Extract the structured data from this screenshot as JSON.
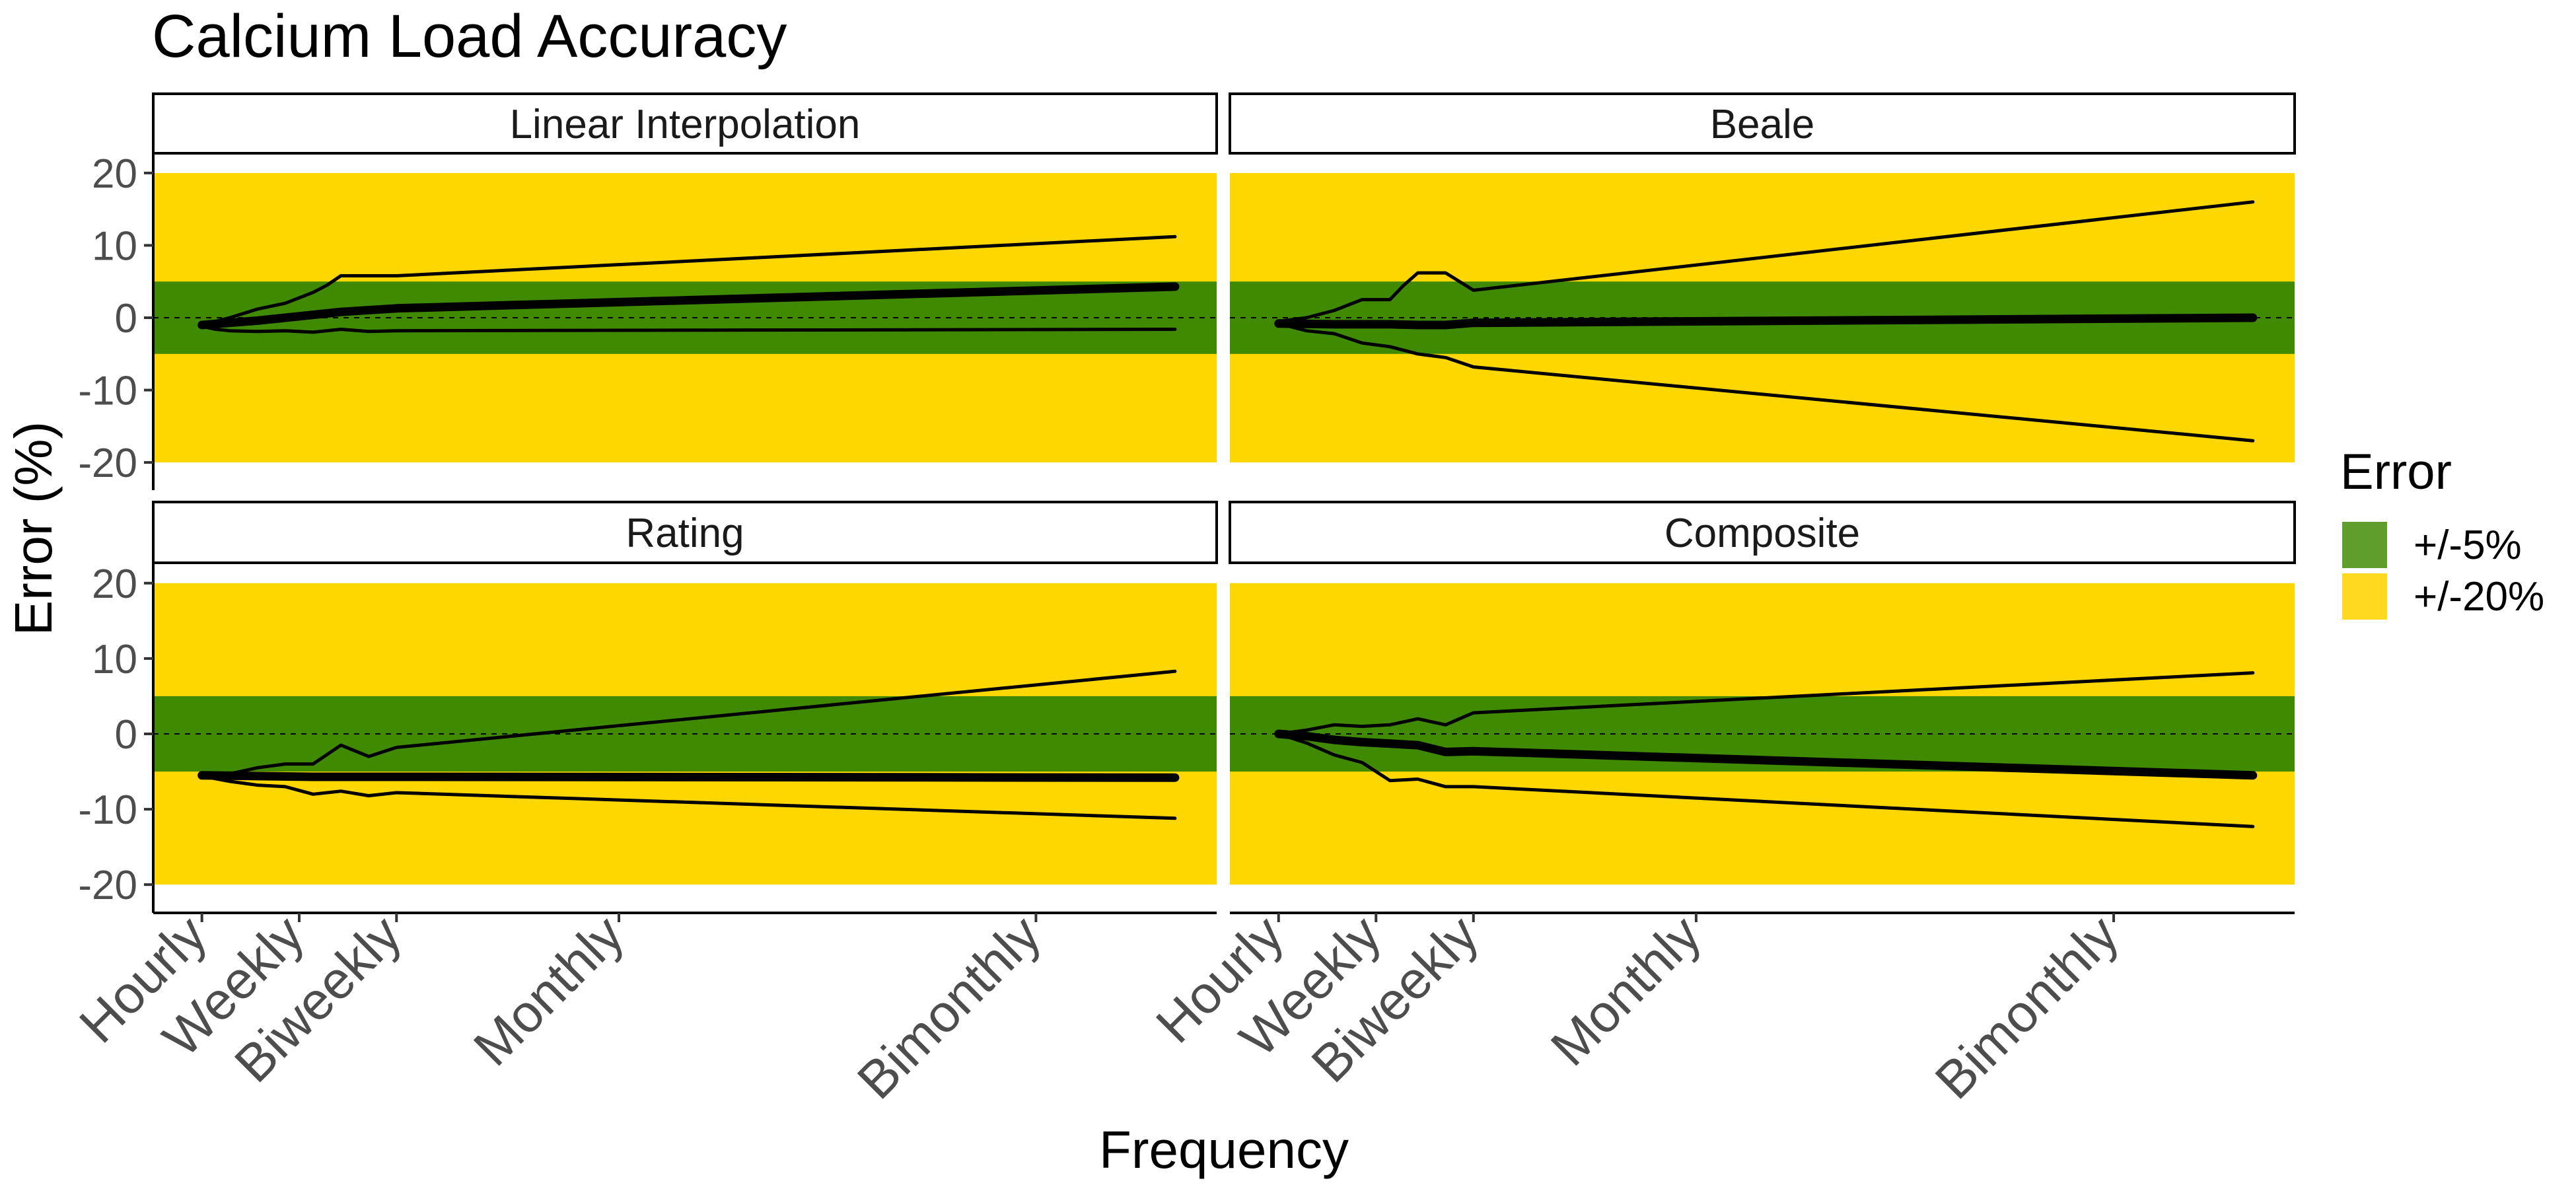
{
  "chart_data": {
    "type": "line",
    "title": "Calcium Load Accuracy",
    "xlabel": "Frequency",
    "ylabel": "Error (%)",
    "x_ticks": [
      {
        "label": "Hourly",
        "x": 0
      },
      {
        "label": "Weekly",
        "x": 7
      },
      {
        "label": "Biweekly",
        "x": 14
      },
      {
        "label": "Monthly",
        "x": 30
      },
      {
        "label": "Bimonthly",
        "x": 60
      }
    ],
    "xlim": [
      -3.5,
      73
    ],
    "ylim": [
      -22,
      22
    ],
    "y_ticks": [
      -20,
      -10,
      0,
      10,
      20
    ],
    "bands": [
      {
        "label": "+/-20%",
        "min": -20,
        "max": 20,
        "color": "#FFD700",
        "legend_color": "#FFD91F"
      },
      {
        "label": "+/-5%",
        "min": -5,
        "max": 5,
        "color": "#3F8A00",
        "legend_color": "#5F9E2C"
      }
    ],
    "legend": {
      "title": "Error",
      "position": "right",
      "entries": [
        {
          "label": "+/-5%",
          "color": "#5F9E2C"
        },
        {
          "label": "+/-20%",
          "color": "#FFD91F"
        }
      ]
    },
    "reference_line": 0,
    "panels": [
      {
        "name": "Linear Interpolation",
        "series": [
          {
            "role": "upper",
            "points": [
              [
                0,
                -1
              ],
              [
                1,
                -0.5
              ],
              [
                2,
                0
              ],
              [
                4,
                1.2
              ],
              [
                6,
                2
              ],
              [
                8,
                3.5
              ],
              [
                9,
                4.5
              ],
              [
                10,
                5.8
              ],
              [
                14,
                5.8
              ],
              [
                70,
                11.2
              ]
            ]
          },
          {
            "role": "median",
            "points": [
              [
                0,
                -1
              ],
              [
                2,
                -0.7
              ],
              [
                4,
                -0.4
              ],
              [
                6,
                0
              ],
              [
                8,
                0.4
              ],
              [
                10,
                0.8
              ],
              [
                14,
                1.3
              ],
              [
                70,
                4.3
              ]
            ]
          },
          {
            "role": "lower",
            "points": [
              [
                0,
                -1.2
              ],
              [
                1,
                -1.6
              ],
              [
                2,
                -1.8
              ],
              [
                4,
                -1.9
              ],
              [
                6,
                -1.8
              ],
              [
                8,
                -2
              ],
              [
                10,
                -1.6
              ],
              [
                12,
                -1.9
              ],
              [
                14,
                -1.8
              ],
              [
                70,
                -1.6
              ]
            ]
          }
        ]
      },
      {
        "name": "Beale",
        "series": [
          {
            "role": "upper",
            "points": [
              [
                0,
                -0.5
              ],
              [
                2,
                0
              ],
              [
                4,
                1
              ],
              [
                6,
                2.5
              ],
              [
                8,
                2.5
              ],
              [
                9,
                4.5
              ],
              [
                10,
                6.2
              ],
              [
                12,
                6.2
              ],
              [
                14,
                3.8
              ],
              [
                70,
                16
              ]
            ]
          },
          {
            "role": "median",
            "points": [
              [
                0,
                -0.8
              ],
              [
                4,
                -0.9
              ],
              [
                8,
                -0.9
              ],
              [
                10,
                -1
              ],
              [
                12,
                -1
              ],
              [
                14,
                -0.7
              ],
              [
                70,
                0
              ]
            ]
          },
          {
            "role": "lower",
            "points": [
              [
                0,
                -0.8
              ],
              [
                2,
                -1.8
              ],
              [
                4,
                -2.2
              ],
              [
                6,
                -3.5
              ],
              [
                8,
                -4
              ],
              [
                10,
                -5
              ],
              [
                12,
                -5.5
              ],
              [
                14,
                -6.8
              ],
              [
                70,
                -17
              ]
            ]
          }
        ]
      },
      {
        "name": "Rating",
        "series": [
          {
            "role": "upper",
            "points": [
              [
                0,
                -5.5
              ],
              [
                2,
                -5.3
              ],
              [
                4,
                -4.5
              ],
              [
                6,
                -4
              ],
              [
                8,
                -4
              ],
              [
                10,
                -1.5
              ],
              [
                12,
                -3
              ],
              [
                14,
                -1.8
              ],
              [
                70,
                8.3
              ]
            ]
          },
          {
            "role": "median",
            "points": [
              [
                0,
                -5.5
              ],
              [
                4,
                -5.6
              ],
              [
                8,
                -5.7
              ],
              [
                14,
                -5.7
              ],
              [
                70,
                -5.8
              ]
            ]
          },
          {
            "role": "lower",
            "points": [
              [
                0,
                -5.6
              ],
              [
                2,
                -6.3
              ],
              [
                4,
                -6.8
              ],
              [
                6,
                -7
              ],
              [
                8,
                -8
              ],
              [
                10,
                -7.6
              ],
              [
                12,
                -8.2
              ],
              [
                14,
                -7.8
              ],
              [
                70,
                -11.2
              ]
            ]
          }
        ]
      },
      {
        "name": "Composite",
        "series": [
          {
            "role": "upper",
            "points": [
              [
                0,
                0
              ],
              [
                2,
                0.5
              ],
              [
                4,
                1.2
              ],
              [
                6,
                1
              ],
              [
                8,
                1.2
              ],
              [
                10,
                2
              ],
              [
                12,
                1.2
              ],
              [
                14,
                2.8
              ],
              [
                70,
                8.1
              ]
            ]
          },
          {
            "role": "median",
            "points": [
              [
                0,
                0
              ],
              [
                2,
                -0.3
              ],
              [
                4,
                -0.8
              ],
              [
                6,
                -1.1
              ],
              [
                8,
                -1.3
              ],
              [
                10,
                -1.5
              ],
              [
                12,
                -2.4
              ],
              [
                14,
                -2.3
              ],
              [
                70,
                -5.5
              ]
            ]
          },
          {
            "role": "lower",
            "points": [
              [
                0,
                0
              ],
              [
                2,
                -1.2
              ],
              [
                4,
                -2.8
              ],
              [
                6,
                -3.8
              ],
              [
                8,
                -6.2
              ],
              [
                10,
                -6
              ],
              [
                12,
                -7
              ],
              [
                14,
                -7
              ],
              [
                70,
                -12.3
              ]
            ]
          }
        ]
      }
    ]
  }
}
